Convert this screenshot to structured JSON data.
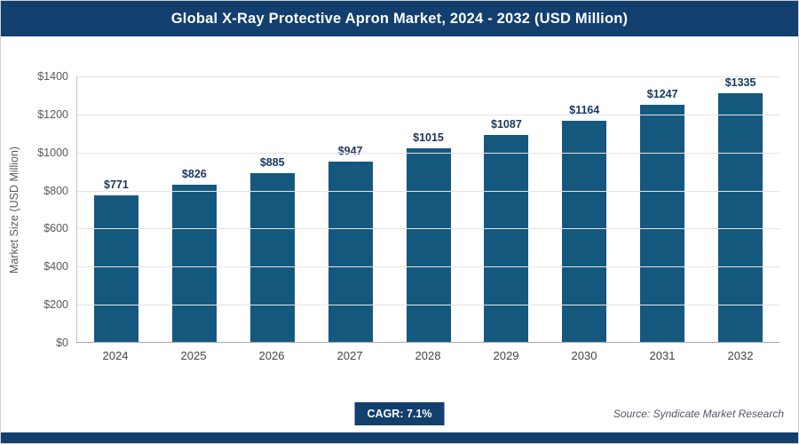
{
  "header": {
    "title": "Global X-Ray Protective Apron Market, 2024 - 2032 (USD Million)"
  },
  "chart_data": {
    "type": "bar",
    "title": "Global X-Ray Protective Apron Market, 2024 - 2032 (USD Million)",
    "categories": [
      "2024",
      "2025",
      "2026",
      "2027",
      "2028",
      "2029",
      "2030",
      "2031",
      "2032"
    ],
    "values": [
      771,
      826,
      885,
      947,
      1015,
      1087,
      1164,
      1247,
      1335
    ],
    "value_prefix": "$",
    "xlabel": "",
    "ylabel": "Market Size (USD Million)",
    "ylim": [
      0,
      1400
    ],
    "ytick_step": 200,
    "grid": "horizontal",
    "legend": "none"
  },
  "footer": {
    "cagr_label": "CAGR: 7.1%",
    "source": "Source: Syndicate Market Research"
  },
  "colors": {
    "header_bg": "#123f6d",
    "bar": "#15587e",
    "value_label": "#17375e",
    "badge_bg": "#123f6d",
    "bottom_bar": "#123f6d"
  }
}
